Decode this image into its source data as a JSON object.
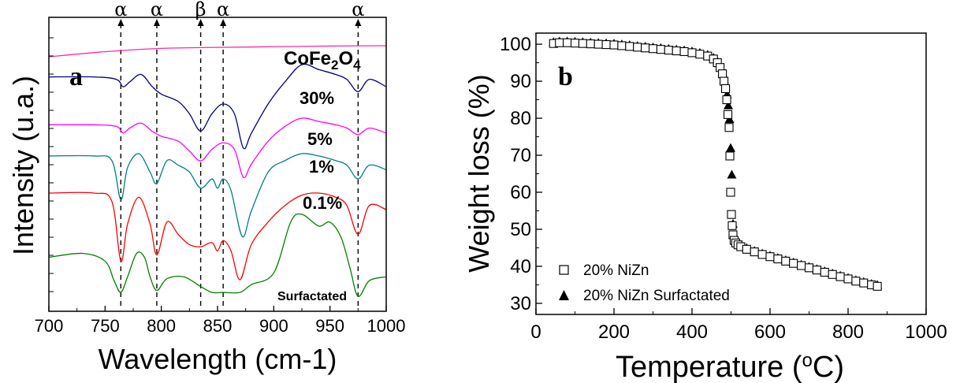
{
  "chart_data": [
    {
      "type": "line",
      "panel": "a",
      "xlabel": "Wavelength (cm-1)",
      "ylabel": "Intensity (u.a.)",
      "xlim": [
        700,
        1000
      ],
      "x_ticks": [
        "700",
        "750",
        "800",
        "850",
        "900",
        "950",
        "1000"
      ],
      "y_ticks_labeled": false,
      "markers": [
        {
          "label": "α",
          "x": 764
        },
        {
          "label": "α",
          "x": 796
        },
        {
          "label": "β",
          "x": 835
        },
        {
          "label": "α",
          "x": 855
        },
        {
          "label": "α",
          "x": 975
        }
      ],
      "series": [
        {
          "name": "CoFe2O4",
          "name_base": "CoFe",
          "name_sub1": "2",
          "name_mid": "O",
          "name_sub2": "4",
          "color": "#ff2aa0",
          "x": [
            700,
            750,
            800,
            850,
            900,
            950,
            1000
          ],
          "y": [
            95.0,
            96.5,
            97.5,
            97.8,
            98.0,
            98.2,
            98.3
          ]
        },
        {
          "name": "30%",
          "color": "#000080",
          "x": [
            700,
            740,
            760,
            766,
            772,
            782,
            792,
            800,
            815,
            825,
            835,
            845,
            855,
            865,
            873,
            880,
            895,
            910,
            925,
            940,
            955,
            965,
            975,
            985,
            1000
          ],
          "y": [
            87,
            87,
            86,
            83,
            85,
            88,
            83,
            80,
            77,
            72,
            65,
            72,
            76,
            72,
            58,
            64,
            76,
            85,
            92,
            90,
            88,
            86,
            81,
            86,
            83
          ]
        },
        {
          "name": "5%",
          "color": "#ff00ff",
          "x": [
            700,
            740,
            760,
            766,
            772,
            782,
            792,
            800,
            815,
            825,
            835,
            845,
            855,
            865,
            873,
            880,
            895,
            910,
            925,
            940,
            955,
            965,
            975,
            985,
            1000
          ],
          "y": [
            72,
            72,
            71,
            67,
            70,
            73,
            68,
            65,
            62,
            56,
            50,
            57,
            61,
            57,
            40,
            48,
            62,
            71,
            76,
            74,
            72,
            70,
            66,
            70,
            67
          ]
        },
        {
          "name": "1%",
          "color": "#008080",
          "x": [
            700,
            740,
            756,
            764,
            770,
            780,
            790,
            796,
            805,
            815,
            825,
            835,
            845,
            850,
            855,
            862,
            872,
            880,
            895,
            910,
            925,
            940,
            955,
            965,
            975,
            985,
            1000
          ],
          "y": [
            62,
            62,
            60,
            43,
            57,
            63,
            55,
            50,
            60,
            58,
            55,
            48,
            52,
            48,
            52,
            47,
            27,
            38,
            55,
            60,
            63,
            62,
            60,
            58,
            52,
            58,
            56
          ]
        },
        {
          "name": "0.1%",
          "color": "#ff0000",
          "x": [
            700,
            740,
            756,
            764,
            770,
            780,
            790,
            796,
            805,
            815,
            825,
            835,
            845,
            850,
            855,
            862,
            870,
            880,
            895,
            910,
            925,
            940,
            955,
            965,
            975,
            985,
            1000
          ],
          "y": [
            50,
            50,
            46,
            17,
            35,
            48,
            35,
            20,
            36,
            30,
            25,
            24,
            26,
            22,
            27,
            22,
            8,
            25,
            36,
            44,
            49,
            50,
            48,
            44,
            30,
            44,
            42
          ]
        },
        {
          "name": "Surfactated",
          "color": "#008000",
          "x": [
            700,
            730,
            750,
            758,
            764,
            770,
            778,
            785,
            790,
            796,
            805,
            820,
            835,
            845,
            855,
            870,
            880,
            900,
            915,
            925,
            940,
            950,
            960,
            968,
            975,
            985,
            1000
          ],
          "y": [
            20,
            22,
            18,
            8,
            2,
            10,
            22,
            20,
            10,
            3,
            9,
            10,
            5,
            2,
            2,
            2,
            6,
            12,
            38,
            42,
            36,
            38,
            30,
            14,
            0,
            8,
            10
          ]
        }
      ]
    },
    {
      "type": "scatter",
      "panel": "b",
      "xlabel": "Temperature (",
      "xlabel_sup": "o",
      "xlabel_end": "C)",
      "ylabel": "Weight loss (%)",
      "xlim": [
        0,
        1000
      ],
      "ylim": [
        27,
        103
      ],
      "x_ticks": [
        0,
        200,
        400,
        600,
        800,
        1000
      ],
      "y_ticks": [
        30,
        40,
        50,
        60,
        70,
        80,
        90,
        100
      ],
      "legend_position": "bottom-left",
      "series": [
        {
          "name": "20% NiZn",
          "marker": "open-square",
          "x": [
            45,
            60,
            80,
            100,
            120,
            140,
            160,
            180,
            200,
            220,
            240,
            260,
            280,
            300,
            320,
            340,
            360,
            380,
            400,
            420,
            440,
            455,
            465,
            472,
            478,
            482,
            486,
            489,
            492,
            495,
            497,
            499,
            501,
            503,
            505,
            508,
            512,
            518,
            525,
            540,
            560,
            580,
            600,
            620,
            640,
            660,
            680,
            700,
            720,
            740,
            760,
            780,
            800,
            820,
            840,
            860,
            875
          ],
          "y": [
            100.2,
            100.4,
            100.4,
            100.3,
            100.2,
            100.1,
            100.0,
            99.9,
            99.8,
            99.6,
            99.4,
            99.2,
            99.0,
            98.8,
            98.6,
            98.4,
            98.2,
            98.0,
            97.7,
            97.3,
            96.8,
            96.0,
            95.0,
            93.7,
            92.0,
            90.0,
            88.0,
            85.0,
            81.0,
            77.5,
            69.8,
            60.0,
            54.0,
            51.0,
            48.5,
            47.0,
            46.3,
            45.8,
            45.3,
            44.6,
            43.9,
            43.2,
            42.6,
            42.0,
            41.4,
            40.8,
            40.2,
            39.6,
            39.0,
            38.4,
            37.8,
            37.2,
            36.6,
            36.0,
            35.5,
            35.0,
            34.6
          ]
        },
        {
          "name": "20% NiZn Surfactated",
          "marker": "filled-triangle",
          "x": [
            45,
            60,
            80,
            100,
            120,
            140,
            160,
            180,
            200,
            220,
            240,
            260,
            280,
            300,
            320,
            340,
            360,
            380,
            400,
            420,
            440,
            455,
            465,
            472,
            478,
            482,
            486,
            490,
            493,
            496,
            499,
            502,
            505,
            508,
            512,
            518,
            525,
            540,
            560,
            580,
            600,
            620,
            640,
            660,
            680,
            700,
            720,
            740,
            760,
            780,
            800,
            820,
            840,
            860,
            875
          ],
          "y": [
            100.6,
            100.8,
            100.8,
            100.7,
            100.6,
            100.5,
            100.4,
            100.3,
            100.2,
            100.0,
            99.8,
            99.6,
            99.4,
            99.2,
            99.0,
            98.8,
            98.6,
            98.4,
            98.1,
            97.7,
            97.2,
            96.4,
            95.4,
            94.1,
            92.4,
            90.5,
            88.5,
            86.5,
            83.5,
            79.8,
            72.0,
            64.8,
            51.5,
            48.5,
            47.3,
            46.5,
            45.8,
            45.0,
            44.2,
            43.5,
            42.9,
            42.3,
            41.7,
            41.1,
            40.5,
            39.9,
            39.3,
            38.7,
            38.1,
            37.5,
            36.9,
            36.3,
            35.8,
            35.3,
            35.0
          ]
        }
      ]
    }
  ]
}
